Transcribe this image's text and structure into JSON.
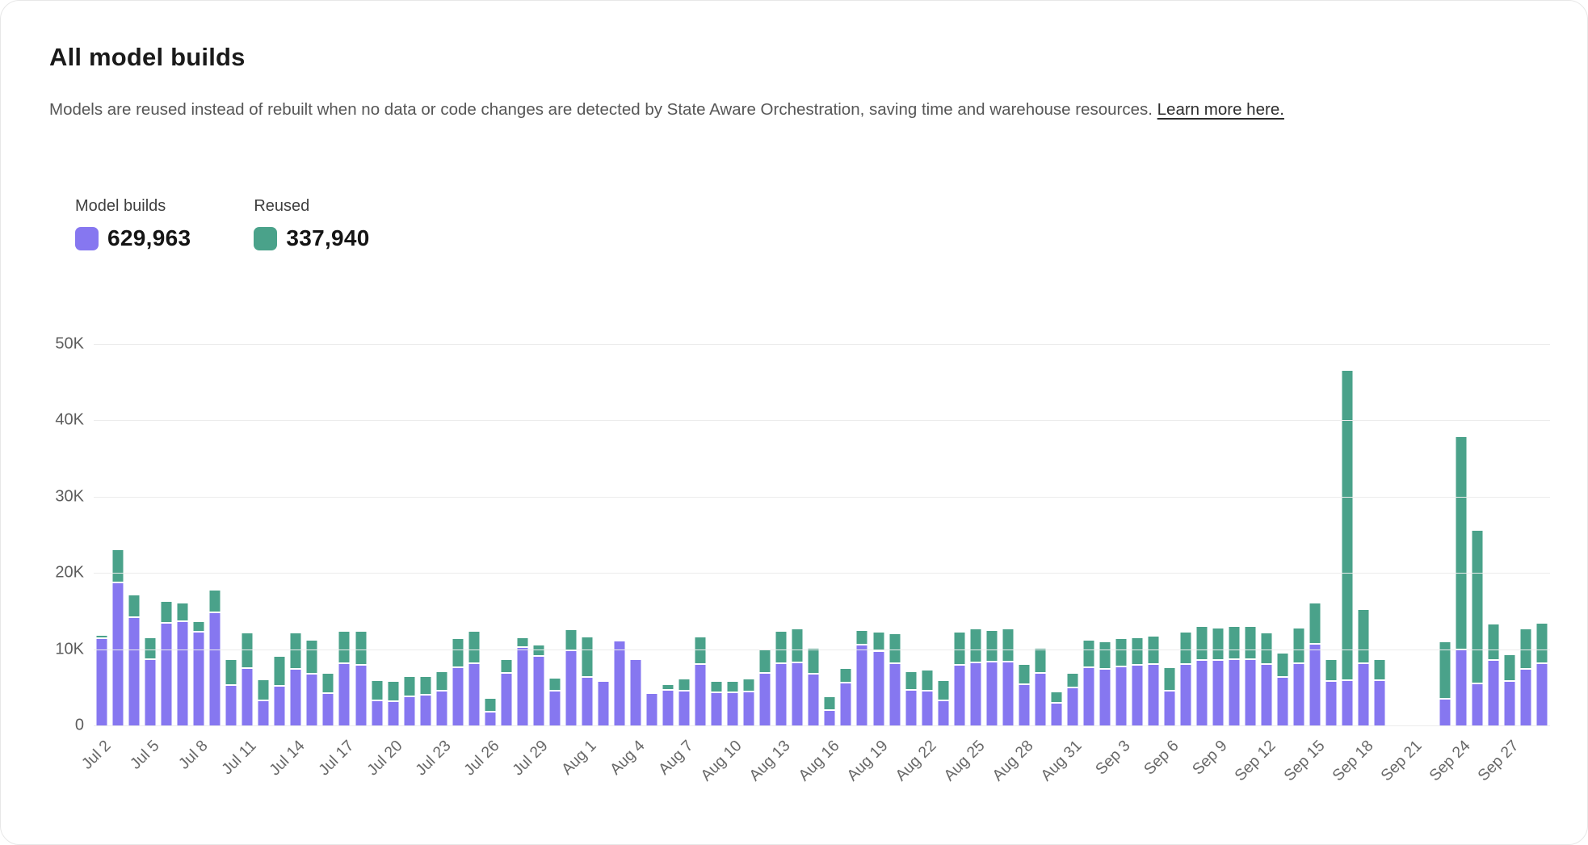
{
  "card": {
    "title": "All model builds",
    "description": "Models are reused instead of rebuilt when no data or code changes are detected by State Aware Orchestration, saving time and warehouse resources.",
    "link_text": "Learn more here."
  },
  "legend": {
    "builds": {
      "label": "Model builds",
      "value": "629,963",
      "color": "#8677F0"
    },
    "reused": {
      "label": "Reused",
      "value": "337,940",
      "color": "#4AA28A"
    }
  },
  "colors": {
    "builds_bar": "#8677F0",
    "reused_bar": "#4AA28A",
    "gridline": "#ececec"
  },
  "chart_data": {
    "type": "bar",
    "stacked": true,
    "title": "All model builds",
    "xlabel": "",
    "ylabel": "",
    "ylim": [
      0,
      50000
    ],
    "y_ticks_top_to_bottom": [
      "50K",
      "40K",
      "30K",
      "20K",
      "10K",
      "0"
    ],
    "grid": true,
    "legend_position": "top-left",
    "x_tick_every": 3,
    "x": [
      "Jul 2",
      "Jul 3",
      "Jul 4",
      "Jul 5",
      "Jul 6",
      "Jul 7",
      "Jul 8",
      "Jul 9",
      "Jul 10",
      "Jul 11",
      "Jul 12",
      "Jul 13",
      "Jul 14",
      "Jul 15",
      "Jul 16",
      "Jul 17",
      "Jul 18",
      "Jul 19",
      "Jul 20",
      "Jul 21",
      "Jul 22",
      "Jul 23",
      "Jul 24",
      "Jul 25",
      "Jul 26",
      "Jul 27",
      "Jul 28",
      "Jul 29",
      "Jul 30",
      "Jul 31",
      "Aug 1",
      "Aug 2",
      "Aug 3",
      "Aug 4",
      "Aug 5",
      "Aug 6",
      "Aug 7",
      "Aug 8",
      "Aug 9",
      "Aug 10",
      "Aug 11",
      "Aug 12",
      "Aug 13",
      "Aug 14",
      "Aug 15",
      "Aug 16",
      "Aug 17",
      "Aug 18",
      "Aug 19",
      "Aug 20",
      "Aug 21",
      "Aug 22",
      "Aug 23",
      "Aug 24",
      "Aug 25",
      "Aug 26",
      "Aug 27",
      "Aug 28",
      "Aug 29",
      "Aug 30",
      "Aug 31",
      "Sep 1",
      "Sep 2",
      "Sep 3",
      "Sep 4",
      "Sep 5",
      "Sep 6",
      "Sep 7",
      "Sep 8",
      "Sep 9",
      "Sep 10",
      "Sep 11",
      "Sep 12",
      "Sep 13",
      "Sep 14",
      "Sep 15",
      "Sep 16",
      "Sep 17",
      "Sep 18",
      "Sep 19",
      "Sep 20",
      "Sep 21",
      "Sep 22",
      "Sep 23",
      "Sep 24",
      "Sep 25",
      "Sep 26",
      "Sep 27",
      "Sep 28",
      "Sep 29"
    ],
    "series": [
      {
        "name": "Model builds",
        "color": "#8677F0",
        "values": [
          11300,
          18600,
          14100,
          8600,
          13400,
          13600,
          12200,
          14700,
          5200,
          7400,
          3200,
          5100,
          7300,
          6700,
          4100,
          8000,
          7800,
          3200,
          3100,
          3700,
          3900,
          4500,
          7500,
          8100,
          1700,
          6800,
          10200,
          9000,
          4500,
          9700,
          6300,
          5700,
          11000,
          8600,
          4100,
          4600,
          4400,
          7900,
          4200,
          4200,
          4300,
          6800,
          8100,
          8200,
          6700,
          1900,
          5500,
          10500,
          9600,
          8000,
          4600,
          4500,
          3200,
          7800,
          8200,
          8300,
          8300,
          5300,
          6800,
          2900,
          4900,
          7500,
          7300,
          7600,
          7800,
          7900,
          4500,
          7900,
          8500,
          8500,
          8600,
          8600,
          7900,
          6300,
          8000,
          10600,
          5700,
          5800,
          8100,
          5800,
          0,
          0,
          0,
          3400,
          9900,
          5400,
          8500,
          5700,
          7300,
          8000
        ]
      },
      {
        "name": "Reused",
        "color": "#4AA28A",
        "values": [
          200,
          4200,
          2700,
          2600,
          2600,
          2200,
          1100,
          2800,
          3200,
          4500,
          2500,
          3700,
          4600,
          4200,
          2500,
          4100,
          4300,
          2400,
          2400,
          2400,
          2200,
          2300,
          3600,
          4000,
          1600,
          1600,
          1000,
          1300,
          1400,
          2600,
          5000,
          0,
          0,
          0,
          0,
          500,
          1400,
          3400,
          1300,
          1300,
          1500,
          3000,
          4000,
          4200,
          3200,
          1600,
          1700,
          1700,
          2400,
          3800,
          2200,
          2500,
          2400,
          4200,
          4200,
          3900,
          4100,
          2400,
          3100,
          1200,
          1700,
          3400,
          3400,
          3500,
          3400,
          3500,
          2800,
          4100,
          4200,
          4000,
          4100,
          4100,
          4000,
          2900,
          4500,
          5200,
          2700,
          40500,
          6800,
          2600,
          0,
          0,
          0,
          7300,
          27700,
          19900,
          4500,
          3300,
          5100,
          5100
        ]
      }
    ]
  }
}
